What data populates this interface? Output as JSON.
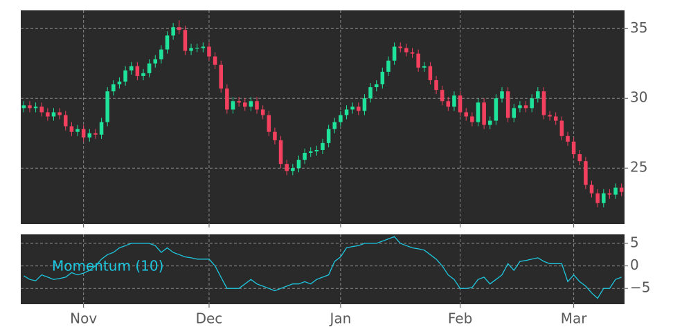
{
  "chart_data": [
    {
      "type": "candlestick",
      "open": [
        29.3,
        29.5,
        29.3,
        29.4,
        29.0,
        28.7,
        29.0,
        28.8,
        28.0,
        27.6,
        27.8,
        27.2,
        27.5,
        27.4,
        28.3,
        30.5,
        31.0,
        31.2,
        32.0,
        32.3,
        31.6,
        31.8,
        32.5,
        32.8,
        33.5,
        34.5,
        35.1,
        34.9,
        33.4,
        33.6,
        33.6,
        33.7,
        33.0,
        32.4,
        30.7,
        29.2,
        29.8,
        29.7,
        29.4,
        29.8,
        29.2,
        28.8,
        27.6,
        27.0,
        25.3,
        24.8,
        25.0,
        25.6,
        26.1,
        26.2,
        26.3,
        26.8,
        27.8,
        28.3,
        28.8,
        29.2,
        29.4,
        29.1,
        30.0,
        30.8,
        31.0,
        31.9,
        32.7,
        33.7,
        33.6,
        33.3,
        33.2,
        32.2,
        32.3,
        31.3,
        30.6,
        29.8,
        29.4,
        30.2,
        29.0,
        28.7,
        28.3,
        29.7,
        28.1,
        28.4,
        30.0,
        30.5,
        28.6,
        29.3,
        29.5,
        29.3,
        30.0,
        30.5,
        28.8,
        28.7,
        28.4,
        27.3,
        26.9,
        26.0,
        25.5,
        23.8,
        23.2,
        22.5,
        23.2,
        23.1,
        23.6
      ],
      "high": [
        29.8,
        29.8,
        29.7,
        29.7,
        29.3,
        29.3,
        29.3,
        29.1,
        28.3,
        28.1,
        28.1,
        27.8,
        27.8,
        28.6,
        30.8,
        31.3,
        31.5,
        32.3,
        32.6,
        32.6,
        32.1,
        32.8,
        33.1,
        33.8,
        34.8,
        35.4,
        35.6,
        35.2,
        33.9,
        33.9,
        34.0,
        34.0,
        33.3,
        32.7,
        31.0,
        30.1,
        30.1,
        30.0,
        30.1,
        30.1,
        29.5,
        29.1,
        27.9,
        27.3,
        25.6,
        25.3,
        25.9,
        26.4,
        26.5,
        26.6,
        27.1,
        28.1,
        28.6,
        29.1,
        29.5,
        29.7,
        29.7,
        30.3,
        31.1,
        31.3,
        32.2,
        33.0,
        34.0,
        34.0,
        33.9,
        33.6,
        33.5,
        32.6,
        32.6,
        31.6,
        30.9,
        30.1,
        30.5,
        30.5,
        29.3,
        29.0,
        30.0,
        30.0,
        28.7,
        30.3,
        30.8,
        30.8,
        29.6,
        29.8,
        29.8,
        30.3,
        30.8,
        30.8,
        29.1,
        29.0,
        28.7,
        27.6,
        27.2,
        26.3,
        25.8,
        24.1,
        23.5,
        23.5,
        23.5,
        23.9,
        23.9
      ],
      "low": [
        29.0,
        29.0,
        29.0,
        28.7,
        28.4,
        28.4,
        28.5,
        27.7,
        27.3,
        27.3,
        26.9,
        26.9,
        27.1,
        27.1,
        28.0,
        30.2,
        30.7,
        30.9,
        31.7,
        31.3,
        31.3,
        31.5,
        32.2,
        32.5,
        33.2,
        34.2,
        34.6,
        33.1,
        33.1,
        33.3,
        33.3,
        32.7,
        32.1,
        30.4,
        28.9,
        28.9,
        29.4,
        29.1,
        29.1,
        28.9,
        28.5,
        27.3,
        26.7,
        25.0,
        24.5,
        24.5,
        24.7,
        25.3,
        25.8,
        25.9,
        26.0,
        26.5,
        27.5,
        28.0,
        28.5,
        28.9,
        28.8,
        28.8,
        29.7,
        30.5,
        30.7,
        31.6,
        32.4,
        33.3,
        33.0,
        32.9,
        31.9,
        31.9,
        31.0,
        30.3,
        29.5,
        29.1,
        29.1,
        28.7,
        28.4,
        28.0,
        28.0,
        27.8,
        27.8,
        28.1,
        29.7,
        28.3,
        28.3,
        29.0,
        29.0,
        29.0,
        29.7,
        28.5,
        28.4,
        28.1,
        27.0,
        26.6,
        25.7,
        25.2,
        23.5,
        22.9,
        22.2,
        22.2,
        22.8,
        22.8,
        23.0
      ],
      "close": [
        29.5,
        29.3,
        29.4,
        29.0,
        28.7,
        29.0,
        28.8,
        28.0,
        27.6,
        27.8,
        27.2,
        27.5,
        27.4,
        28.3,
        30.5,
        31.0,
        31.2,
        32.0,
        32.3,
        31.6,
        31.8,
        32.5,
        32.8,
        33.5,
        34.5,
        35.1,
        34.9,
        33.4,
        33.6,
        33.6,
        33.7,
        33.0,
        32.4,
        30.7,
        29.2,
        29.8,
        29.7,
        29.4,
        29.8,
        29.2,
        28.8,
        27.6,
        27.0,
        25.3,
        24.8,
        25.0,
        25.6,
        26.1,
        26.2,
        26.3,
        26.8,
        27.8,
        28.3,
        28.8,
        29.2,
        29.4,
        29.1,
        30.0,
        30.8,
        31.0,
        31.9,
        32.7,
        33.7,
        33.6,
        33.3,
        33.2,
        32.2,
        32.3,
        31.3,
        30.6,
        29.8,
        29.4,
        30.2,
        29.0,
        28.7,
        28.3,
        29.7,
        28.1,
        28.4,
        30.0,
        30.5,
        28.6,
        29.3,
        29.5,
        29.3,
        30.0,
        30.5,
        28.8,
        28.7,
        28.4,
        27.3,
        26.9,
        26.0,
        25.5,
        23.8,
        23.2,
        22.5,
        23.2,
        23.1,
        23.6,
        23.3
      ],
      "up_color": "#1fe39a",
      "down_color": "#f2405e",
      "ylim": [
        21.0,
        36.3
      ],
      "yticks": [
        25,
        30,
        35
      ],
      "grid": true
    },
    {
      "type": "line",
      "categories": [
        null,
        null,
        null,
        null,
        null,
        null,
        null,
        null,
        null,
        null,
        "Nov",
        null,
        null,
        null,
        null,
        null,
        null,
        null,
        null,
        null,
        null,
        null,
        null,
        null,
        null,
        null,
        null,
        null,
        null,
        null,
        null,
        "Dec",
        null,
        null,
        null,
        null,
        null,
        null,
        null,
        null,
        null,
        null,
        null,
        null,
        null,
        null,
        null,
        null,
        null,
        null,
        null,
        null,
        null,
        "Jan",
        null,
        null,
        null,
        null,
        null,
        null,
        null,
        null,
        null,
        null,
        null,
        null,
        null,
        null,
        null,
        null,
        null,
        null,
        null,
        "Feb",
        null,
        null,
        null,
        null,
        null,
        null,
        null,
        null,
        null,
        null,
        null,
        null,
        null,
        null,
        null,
        null,
        null,
        null,
        "Mar",
        null,
        null,
        null,
        null,
        null,
        null,
        null,
        null
      ],
      "series": [
        {
          "name": "Momentum (10)",
          "color": "#1ec8e0",
          "values": [
            -2.2,
            -3,
            -3.3,
            -2,
            -2.5,
            -3,
            -2.8,
            -2.5,
            -1.5,
            -2,
            -1.6,
            -1,
            0,
            1.5,
            2.5,
            3,
            4,
            4.5,
            5,
            5,
            5,
            5,
            4.5,
            3,
            4,
            3,
            2.5,
            2,
            1.8,
            1.5,
            1.5,
            1.5,
            0,
            -2.5,
            -5,
            -5,
            -5,
            -4,
            -3,
            -4,
            -4.5,
            -5,
            -5.5,
            -5,
            -4.5,
            -4,
            -4,
            -3.5,
            -4,
            -3,
            -2.5,
            -2,
            1,
            2,
            4,
            4.3,
            4.5,
            5,
            5,
            5,
            5.5,
            6,
            6.5,
            5,
            4.5,
            4,
            3.8,
            3.5,
            2.5,
            1.5,
            0,
            -2,
            -3,
            -5,
            -5,
            -4.8,
            -3,
            -2.5,
            -4,
            -3,
            -2,
            0.5,
            -1,
            1,
            1.2,
            1.5,
            1.8,
            1,
            0.5,
            0.5,
            0.5,
            -3.5,
            -2,
            -3.5,
            -4.5,
            -6,
            -7.2,
            -5,
            -5,
            -3,
            -2.5
          ]
        }
      ],
      "ylim": [
        -8.5,
        7.0
      ],
      "yticks": [
        5,
        0,
        {
          "value": -5,
          "label": "−5"
        }
      ],
      "grid": true
    }
  ]
}
